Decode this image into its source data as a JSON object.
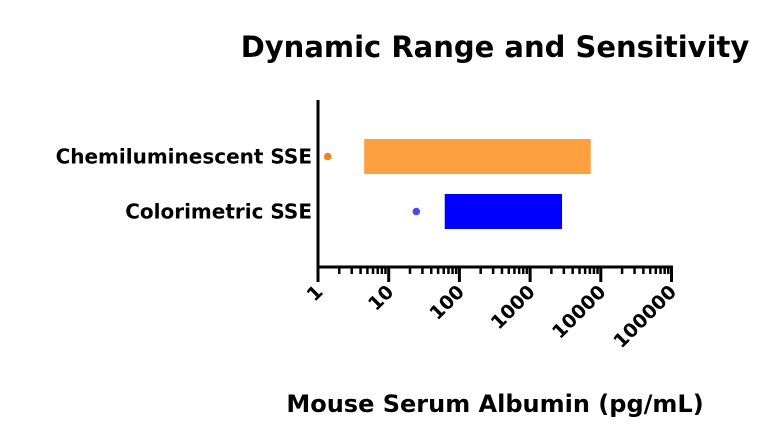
{
  "chart_data": {
    "type": "bar",
    "orientation": "horizontal-range",
    "title": "Dynamic Range and Sensitivity",
    "xlabel": "Mouse Serum Albumin (pg/mL)",
    "ylabel": "",
    "xscale": "log",
    "xlim": [
      1,
      100000
    ],
    "xticks": [
      "1",
      "10",
      "100",
      "1000",
      "10000",
      "100000"
    ],
    "xtick_values": [
      1,
      10,
      100,
      1000,
      10000,
      100000
    ],
    "categories": [
      "Chemiluminescent SSE",
      "Colorimetric SSE"
    ],
    "series": [
      {
        "name": "Chemiluminescent SSE",
        "range": [
          4.5,
          7200
        ],
        "sensitivity_point": 1.37,
        "color": "#FFA040",
        "point_color": "#F5821F"
      },
      {
        "name": "Colorimetric SSE",
        "range": [
          62,
          2830
        ],
        "sensitivity_point": 24.6,
        "color": "#0000FF",
        "point_color": "#4A4AE8"
      }
    ],
    "grid": false,
    "legend": "none"
  }
}
